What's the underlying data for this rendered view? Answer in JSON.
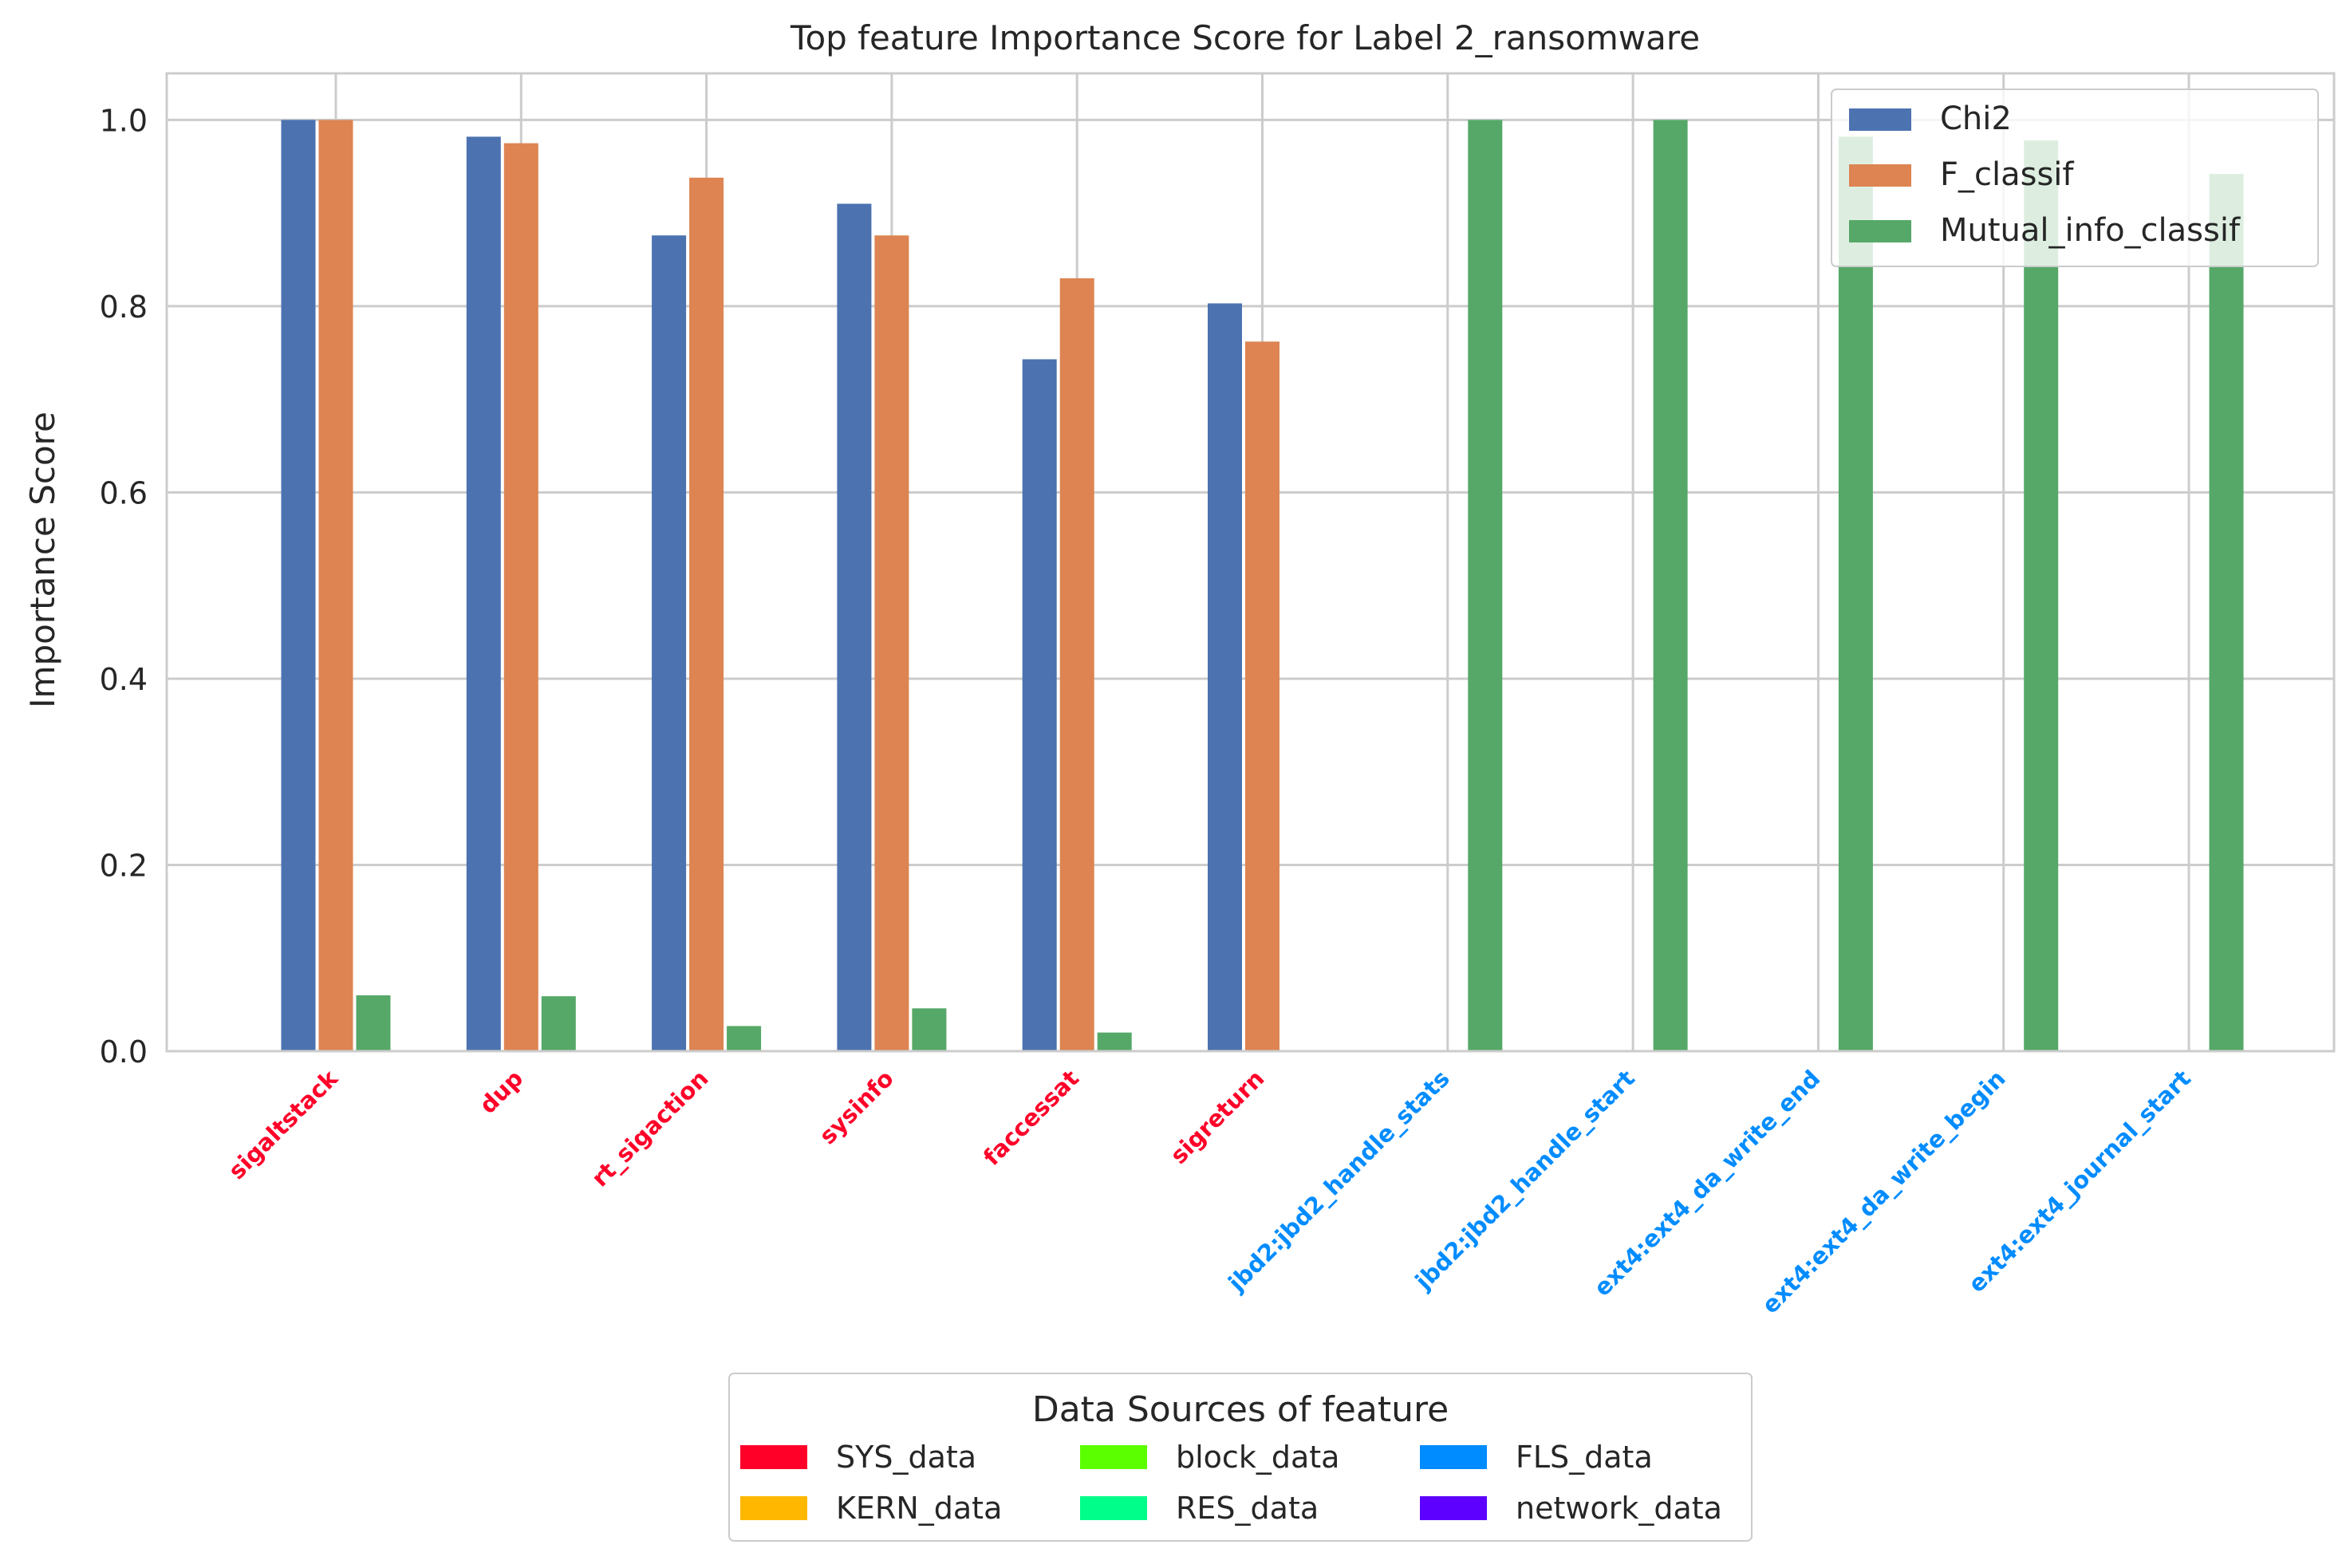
{
  "chart_data": {
    "type": "bar",
    "title": "Top feature Importance Score for Label 2_ransomware",
    "xlabel": "",
    "ylabel": "Importance Score",
    "ylim": [
      0,
      1.05
    ],
    "yticks": [
      "0.0",
      "0.2",
      "0.4",
      "0.6",
      "0.8",
      "1.0"
    ],
    "grid": true,
    "categories": [
      "sigaltstack",
      "dup",
      "rt_sigaction",
      "sysinfo",
      "faccessat",
      "sigreturn",
      "jbd2:jbd2_handle_stats",
      "jbd2:jbd2_handle_start",
      "ext4:ext4_da_write_end",
      "ext4:ext4_da_write_begin",
      "ext4:ext4_journal_start"
    ],
    "category_sources": [
      "SYS_data",
      "SYS_data",
      "SYS_data",
      "SYS_data",
      "SYS_data",
      "SYS_data",
      "FLS_data",
      "FLS_data",
      "FLS_data",
      "FLS_data",
      "FLS_data"
    ],
    "series": [
      {
        "name": "Chi2",
        "color": "#4c72b0",
        "values": [
          1.0,
          0.982,
          0.876,
          0.91,
          0.743,
          0.803,
          0,
          0,
          0,
          0,
          0
        ]
      },
      {
        "name": "F_classif",
        "color": "#dd8452",
        "values": [
          1.0,
          0.975,
          0.938,
          0.876,
          0.83,
          0.762,
          0,
          0,
          0,
          0,
          0
        ]
      },
      {
        "name": "Mutual_info_classif",
        "color": "#55a868",
        "values": [
          0.06,
          0.059,
          0.027,
          0.046,
          0.02,
          0,
          1.0,
          1.0,
          0.982,
          0.978,
          0.942
        ]
      }
    ],
    "legend_placement": "top-right",
    "source_legend": {
      "title": "Data Sources of feature",
      "placement": "bottom-center",
      "entries": [
        {
          "name": "SYS_data",
          "color": "#ff0029"
        },
        {
          "name": "KERN_data",
          "color": "#ffb700"
        },
        {
          "name": "block_data",
          "color": "#5cff00"
        },
        {
          "name": "RES_data",
          "color": "#00ff8a"
        },
        {
          "name": "FLS_data",
          "color": "#008cff"
        },
        {
          "name": "network_data",
          "color": "#5d00ff"
        }
      ]
    }
  }
}
